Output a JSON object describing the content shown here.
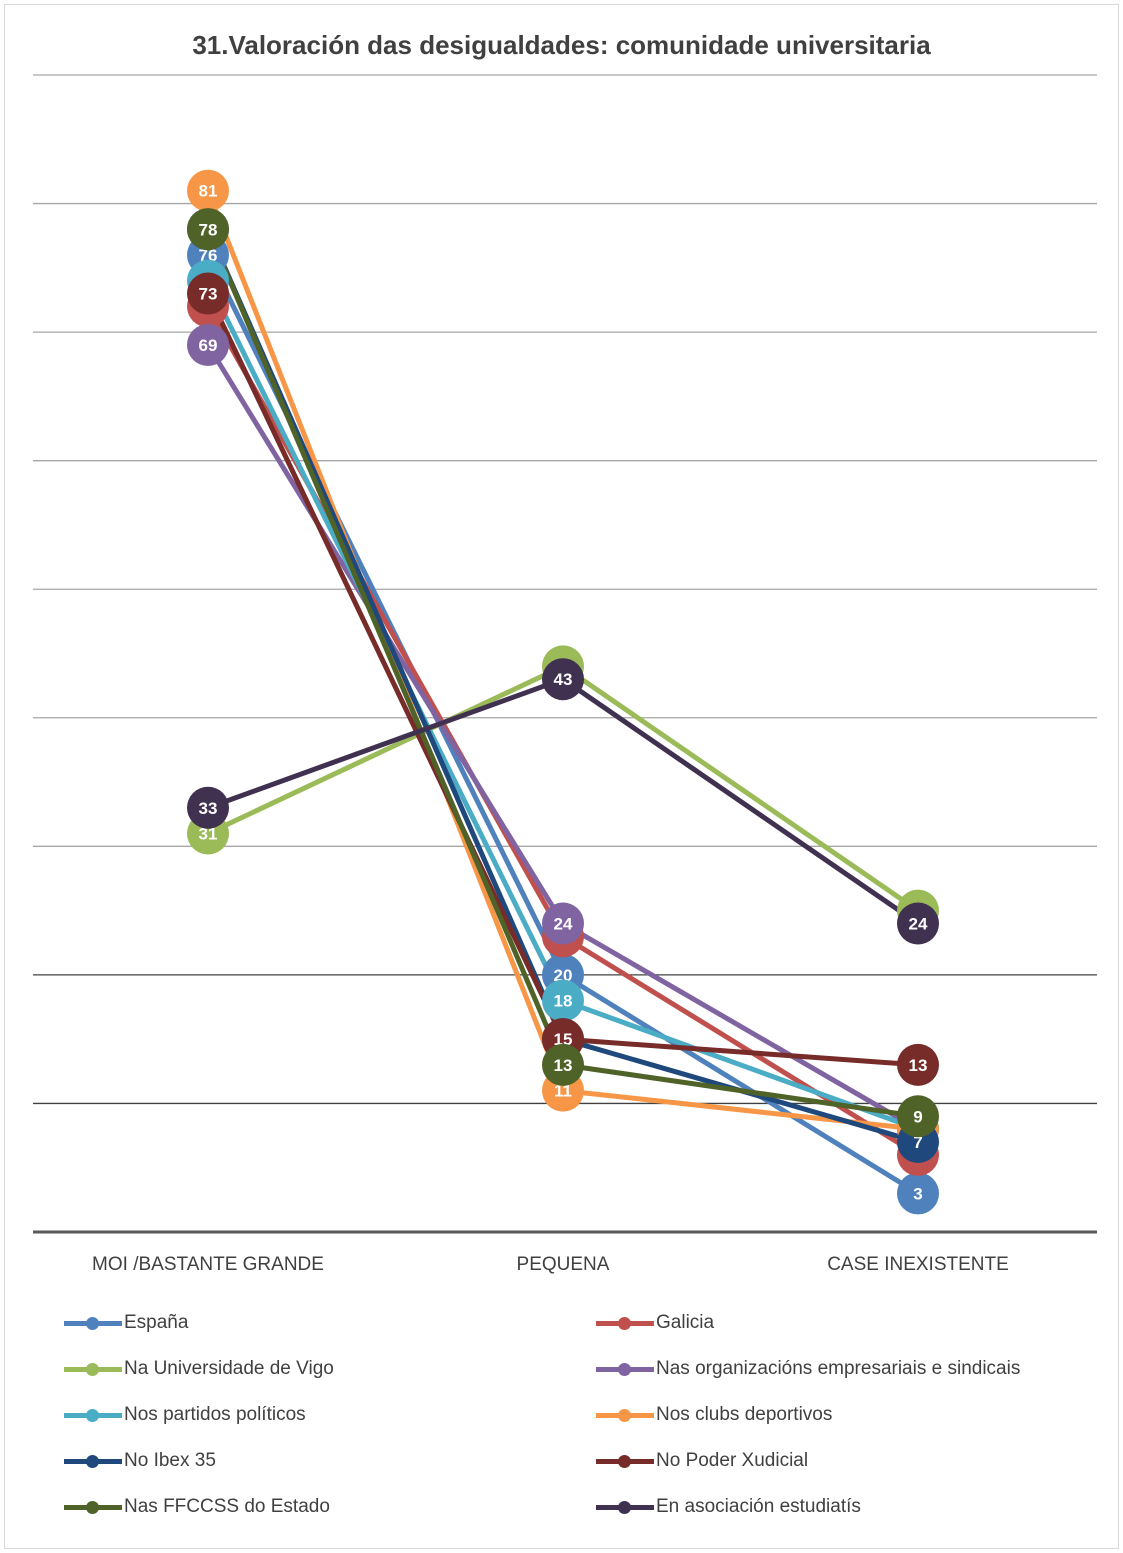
{
  "chart_data": {
    "type": "line",
    "title": "31.Valoración das desigualdades: comunidade universitaria",
    "categories": [
      "MOI /BASTANTE GRANDE",
      "PEQUENA",
      "CASE INEXISTENTE"
    ],
    "ylim": [
      0,
      90
    ],
    "grid": true,
    "legend_position": "bottom",
    "series": [
      {
        "name": "España",
        "color": "#4f81bd",
        "values": [
          76,
          20,
          3
        ]
      },
      {
        "name": "Galicia",
        "color": "#c0504d",
        "values": [
          72,
          23,
          6
        ]
      },
      {
        "name": "Na Universidade de Vigo",
        "color": "#9bbb59",
        "values": [
          31,
          44,
          25
        ]
      },
      {
        "name": "Nas organizacións empresariais e sindicais",
        "color": "#8064a2",
        "values": [
          69,
          24,
          8
        ]
      },
      {
        "name": "Nos partidos políticos",
        "color": "#4bacc6",
        "values": [
          74,
          18,
          8
        ]
      },
      {
        "name": "Nos clubs deportivos",
        "color": "#f79646",
        "values": [
          81,
          11,
          8
        ]
      },
      {
        "name": "No Ibex 35",
        "color": "#1f497d",
        "values": [
          78,
          15,
          7
        ]
      },
      {
        "name": "No Poder Xudicial",
        "color": "#772c2a",
        "values": [
          73,
          15,
          13
        ]
      },
      {
        "name": "Nas FFCCSS do Estado",
        "color": "#4f6228",
        "values": [
          78,
          13,
          9
        ]
      },
      {
        "name": "En asociación estudiatís",
        "color": "#403151",
        "values": [
          33,
          43,
          24
        ]
      }
    ]
  }
}
